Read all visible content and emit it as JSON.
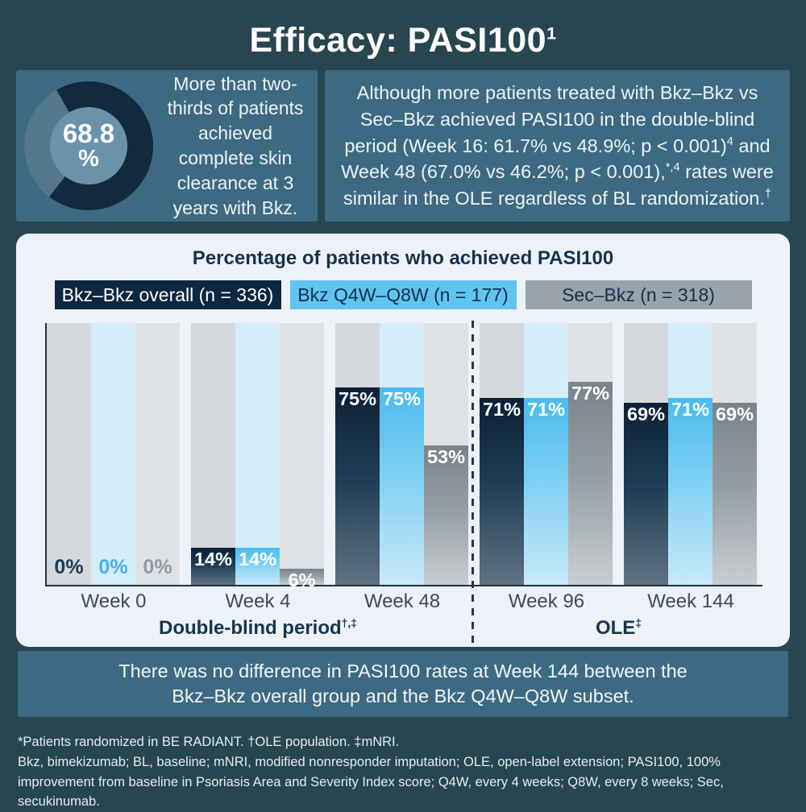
{
  "title": {
    "text": "Efficacy: PASI100",
    "sup": "1"
  },
  "stat_box": {
    "value": "68.8",
    "unit": "%",
    "percent": 68.8,
    "text": "More than two-thirds of patients achieved complete skin clearance at 3 years with Bkz.",
    "donut": {
      "filled": "#12293E",
      "rest": "#54788E",
      "inner": "#6A93AA"
    }
  },
  "info_box": {
    "segments": [
      {
        "t": "Although more patients treated with Bkz–Bkz vs Sec–Bkz achieved PASI100 in the double-blind period (Week 16: 61.7% vs 48.9%; p < 0.001)"
      },
      {
        "t": "4",
        "sup": true
      },
      {
        "t": " and Week 48 (67.0% vs 46.2%; p < 0.001),"
      },
      {
        "t": "*,4",
        "sup": true
      },
      {
        "t": " rates were similar in the OLE regardless of BL randomization."
      },
      {
        "t": "†",
        "sup": true
      }
    ]
  },
  "chart_data": {
    "type": "bar",
    "title": "Percentage of patients who achieved PASI100",
    "categories": [
      "Week 0",
      "Week 4",
      "Week 48",
      "Week 96",
      "Week 144"
    ],
    "series": [
      {
        "name": "Bkz–Bkz overall",
        "n": 336,
        "legend_label": "Bkz–Bkz overall (n = 336)",
        "values": [
          0,
          14,
          75,
          71,
          69
        ],
        "color": "#0E2740",
        "legend_text": "#FFFFFF",
        "bar_top": "#0C2136",
        "bar_mid": "#1E3C55",
        "bar_bottom": "#5F7383",
        "track": "#D5D9DD",
        "zero_label": "#1C3A52"
      },
      {
        "name": "Bkz Q4W–Q8W",
        "n": 177,
        "legend_label": "Bkz Q4W–Q8W (n = 177)",
        "values": [
          0,
          14,
          75,
          71,
          71
        ],
        "color": "#5FC4F0",
        "legend_text": "#13304A",
        "bar_top": "#4BBBEE",
        "bar_mid": "#7FD0F3",
        "bar_bottom": "#C9E9F8",
        "track": "#D5ECF9",
        "zero_label": "#45B3E9"
      },
      {
        "name": "Sec–Bkz",
        "n": 318,
        "legend_label": "Sec–Bkz (n = 318)",
        "values": [
          0,
          6,
          53,
          77,
          69
        ],
        "color": "#99A3AB",
        "legend_text": "#16304A",
        "bar_top": "#79838B",
        "bar_mid": "#939DA4",
        "bar_bottom": "#C9CDD0",
        "track": "#DFE2E5",
        "zero_label": "#8F99A1"
      }
    ],
    "ylim": [
      0,
      100
    ],
    "value_suffix": "%",
    "grid": false,
    "legend_position": "top",
    "period_groups": [
      {
        "label": "Double-blind period",
        "sup": "†,‡",
        "span": [
          0,
          2
        ]
      },
      {
        "label": "OLE",
        "sup": "‡",
        "span": [
          3,
          4
        ]
      }
    ]
  },
  "band": {
    "text": "There was no difference in PASI100 rates at Week 144 between the Bkz–Bkz overall group and the Bkz Q4W–Q8W subset."
  },
  "footnotes": [
    "*Patients randomized in BE RADIANT. †OLE population. ‡mNRI.",
    "Bkz, bimekizumab; BL, baseline; mNRI, modified nonresponder imputation; OLE, open-label extension; PASI100, 100% improvement from baseline in Psoriasis Area and Severity Index score; Q4W, every 4 weeks; Q8W, every 8 weeks; Sec, secukinumab."
  ]
}
